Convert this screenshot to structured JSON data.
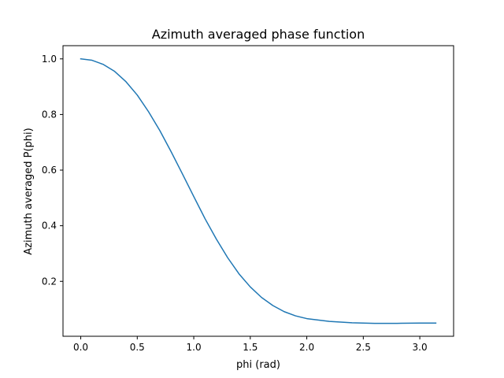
{
  "chart_data": {
    "type": "line",
    "title": "Azimuth averaged phase function",
    "xlabel": "phi (rad)",
    "ylabel": "Azimuth averaged P(phi)",
    "xlim": [
      -0.157,
      3.299
    ],
    "ylim": [
      0.0025,
      1.0475
    ],
    "xticks": [
      0.0,
      0.5,
      1.0,
      1.5,
      2.0,
      2.5,
      3.0
    ],
    "xtick_labels": [
      "0.0",
      "0.5",
      "1.0",
      "1.5",
      "2.0",
      "2.5",
      "3.0"
    ],
    "yticks": [
      0.2,
      0.4,
      0.6,
      0.8,
      1.0
    ],
    "ytick_labels": [
      "0.2",
      "0.4",
      "0.6",
      "0.8",
      "1.0"
    ],
    "grid": false,
    "series": [
      {
        "color": "#1f77b4",
        "x": [
          0.0,
          0.1,
          0.2,
          0.3,
          0.4,
          0.5,
          0.6,
          0.7,
          0.8,
          0.9,
          1.0,
          1.1,
          1.2,
          1.3,
          1.4,
          1.5,
          1.6,
          1.7,
          1.8,
          1.9,
          2.0,
          2.2,
          2.4,
          2.6,
          2.8,
          3.0,
          3.1416
        ],
        "y": [
          1.0,
          0.995,
          0.98,
          0.955,
          0.918,
          0.87,
          0.81,
          0.742,
          0.666,
          0.586,
          0.505,
          0.425,
          0.352,
          0.285,
          0.227,
          0.18,
          0.142,
          0.113,
          0.091,
          0.076,
          0.066,
          0.056,
          0.051,
          0.049,
          0.049,
          0.05,
          0.05
        ]
      }
    ]
  }
}
